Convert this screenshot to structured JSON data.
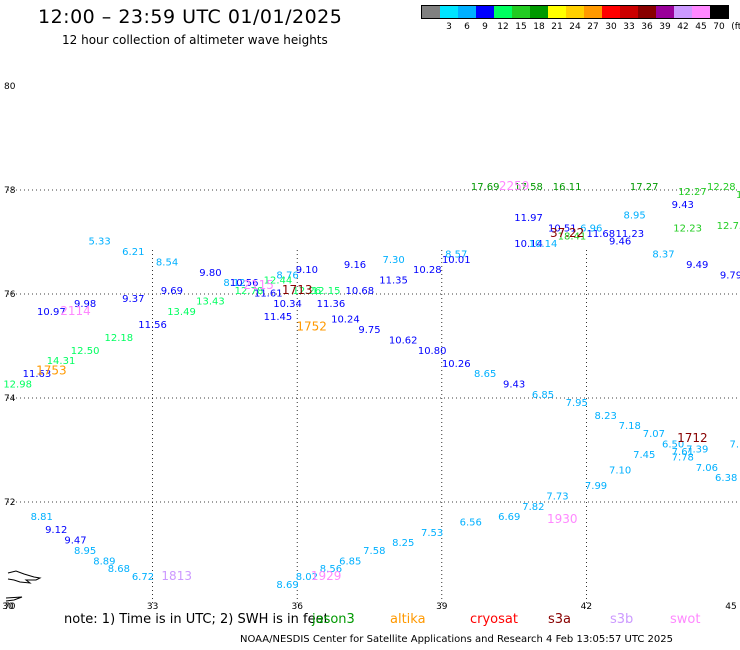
{
  "header": {
    "title": "12:00 – 23:59 UTC 01/01/2025",
    "subtitle": "12 hour collection of altimeter wave heights"
  },
  "legend": {
    "units": "(ft)",
    "swatches": [
      {
        "label": "",
        "color": "#808080"
      },
      {
        "label": "3",
        "color": "#00e5ff"
      },
      {
        "label": "6",
        "color": "#00b0ff"
      },
      {
        "label": "9",
        "color": "#0000ff"
      },
      {
        "label": "12",
        "color": "#00ff60"
      },
      {
        "label": "15",
        "color": "#22cc22"
      },
      {
        "label": "18",
        "color": "#009900"
      },
      {
        "label": "21",
        "color": "#ffff00"
      },
      {
        "label": "24",
        "color": "#ffd000"
      },
      {
        "label": "27",
        "color": "#ff9900"
      },
      {
        "label": "30",
        "color": "#ff0000"
      },
      {
        "label": "33",
        "color": "#cc0000"
      },
      {
        "label": "36",
        "color": "#880000"
      },
      {
        "label": "39",
        "color": "#990099"
      },
      {
        "label": "42",
        "color": "#cc99ff"
      },
      {
        "label": "45",
        "color": "#ff88ff"
      },
      {
        "label": "70",
        "color": "#000000"
      }
    ]
  },
  "axes": {
    "lat_labels": [
      {
        "lat": 80,
        "label": "80"
      },
      {
        "lat": 78,
        "label": "78"
      },
      {
        "lat": 76,
        "label": "76"
      },
      {
        "lat": 74,
        "label": "74"
      },
      {
        "lat": 72,
        "label": "72"
      },
      {
        "lat": 70,
        "label": "70"
      }
    ],
    "lon_labels": [
      {
        "lon": 30,
        "label": "30"
      },
      {
        "lon": 33,
        "label": "33"
      },
      {
        "lon": 36,
        "label": "36"
      },
      {
        "lon": 39,
        "label": "39"
      },
      {
        "lon": 42,
        "label": "42"
      },
      {
        "lon": 45,
        "label": "45"
      }
    ]
  },
  "track_times": [
    {
      "lon": 30.9,
      "lat": 74.45,
      "label": "1753",
      "color": "#ff9900"
    },
    {
      "lon": 31.4,
      "lat": 75.6,
      "label": "2114",
      "color": "#ff88ff"
    },
    {
      "lon": 33.5,
      "lat": 70.5,
      "label": "1813",
      "color": "#cc99ff"
    },
    {
      "lon": 35.2,
      "lat": 76.1,
      "label": "2115",
      "color": "#ff88ff"
    },
    {
      "lon": 36.0,
      "lat": 76.0,
      "label": "1713",
      "color": "#880000"
    },
    {
      "lon": 36.3,
      "lat": 75.3,
      "label": "1752",
      "color": "#ff9900"
    },
    {
      "lon": 36.6,
      "lat": 70.5,
      "label": "1929",
      "color": "#ff88ff"
    },
    {
      "lon": 40.5,
      "lat": 78.0,
      "label": "2259",
      "color": "#ff88ff"
    },
    {
      "lon": 41.6,
      "lat": 77.1,
      "label": "37.22",
      "color": "#880000"
    },
    {
      "lon": 41.5,
      "lat": 71.6,
      "label": "1930",
      "color": "#ff88ff"
    },
    {
      "lon": 44.2,
      "lat": 73.15,
      "label": "1712",
      "color": "#880000"
    }
  ],
  "observations": [
    {
      "lon": 30.9,
      "lat": 75.6,
      "value": "10.97",
      "color": "#0000ff"
    },
    {
      "lon": 31.6,
      "lat": 75.75,
      "value": "9.98",
      "color": "#0000ff"
    },
    {
      "lon": 32.6,
      "lat": 75.85,
      "value": "9.37",
      "color": "#0000ff"
    },
    {
      "lon": 31.9,
      "lat": 76.95,
      "value": "5.33",
      "color": "#00b0ff"
    },
    {
      "lon": 32.6,
      "lat": 76.75,
      "value": "6.21",
      "color": "#00b0ff"
    },
    {
      "lon": 33.3,
      "lat": 76.55,
      "value": "8.54",
      "color": "#00b0ff"
    },
    {
      "lon": 33.4,
      "lat": 76.0,
      "value": "9.69",
      "color": "#0000ff"
    },
    {
      "lon": 34.2,
      "lat": 76.35,
      "value": "9.80",
      "color": "#0000ff"
    },
    {
      "lon": 34.7,
      "lat": 76.15,
      "value": "8.12",
      "color": "#00b0ff"
    },
    {
      "lon": 34.9,
      "lat": 76.15,
      "value": "10.56",
      "color": "#0000ff"
    },
    {
      "lon": 35.8,
      "lat": 76.3,
      "value": "8.76",
      "color": "#00b0ff"
    },
    {
      "lon": 35.4,
      "lat": 75.95,
      "value": "11.61",
      "color": "#0000ff"
    },
    {
      "lon": 35.8,
      "lat": 75.75,
      "value": "10.34",
      "color": "#0000ff"
    },
    {
      "lon": 36.2,
      "lat": 76.4,
      "value": "9.10",
      "color": "#0000ff"
    },
    {
      "lon": 36.7,
      "lat": 75.75,
      "value": "11.36",
      "color": "#0000ff"
    },
    {
      "lon": 37.2,
      "lat": 76.5,
      "value": "9.16",
      "color": "#0000ff"
    },
    {
      "lon": 37.3,
      "lat": 76.0,
      "value": "10.68",
      "color": "#0000ff"
    },
    {
      "lon": 38.0,
      "lat": 76.6,
      "value": "7.30",
      "color": "#00b0ff"
    },
    {
      "lon": 38.0,
      "lat": 76.2,
      "value": "11.35",
      "color": "#0000ff"
    },
    {
      "lon": 38.7,
      "lat": 76.4,
      "value": "10.28",
      "color": "#0000ff"
    },
    {
      "lon": 39.3,
      "lat": 76.7,
      "value": "8.57",
      "color": "#00b0ff"
    },
    {
      "lon": 39.3,
      "lat": 76.6,
      "value": "10.01",
      "color": "#0000ff"
    },
    {
      "lon": 39.9,
      "lat": 78.0,
      "value": "17.69",
      "color": "#009900"
    },
    {
      "lon": 40.8,
      "lat": 78.0,
      "value": "17.58",
      "color": "#009900"
    },
    {
      "lon": 40.8,
      "lat": 77.4,
      "value": "11.97",
      "color": "#0000ff"
    },
    {
      "lon": 40.8,
      "lat": 76.9,
      "value": "10.14",
      "color": "#0000ff"
    },
    {
      "lon": 41.1,
      "lat": 76.9,
      "value": "10.14",
      "color": "#00b0ff"
    },
    {
      "lon": 41.6,
      "lat": 78.0,
      "value": "16.11",
      "color": "#009900"
    },
    {
      "lon": 41.5,
      "lat": 77.2,
      "value": "10.51",
      "color": "#0000ff"
    },
    {
      "lon": 41.7,
      "lat": 77.05,
      "value": "18.41",
      "color": "#22cc22"
    },
    {
      "lon": 42.3,
      "lat": 77.1,
      "value": "11.68",
      "color": "#0000ff"
    },
    {
      "lon": 42.1,
      "lat": 77.2,
      "value": "6.96",
      "color": "#00b0ff"
    },
    {
      "lon": 43.2,
      "lat": 78.0,
      "value": "17.27",
      "color": "#009900"
    },
    {
      "lon": 43.0,
      "lat": 77.45,
      "value": "8.95",
      "color": "#00b0ff"
    },
    {
      "lon": 42.9,
      "lat": 77.1,
      "value": "11.23",
      "color": "#0000ff"
    },
    {
      "lon": 42.7,
      "lat": 76.95,
      "value": "9.46",
      "color": "#0000ff"
    },
    {
      "lon": 43.6,
      "lat": 76.7,
      "value": "8.37",
      "color": "#00b0ff"
    },
    {
      "lon": 44.0,
      "lat": 77.65,
      "value": "9.43",
      "color": "#0000ff"
    },
    {
      "lon": 44.2,
      "lat": 77.9,
      "value": "12.27",
      "color": "#22cc22"
    },
    {
      "lon": 44.8,
      "lat": 78.0,
      "value": "12.28",
      "color": "#22cc22"
    },
    {
      "lon": 45.4,
      "lat": 77.85,
      "value": "12.65",
      "color": "#22cc22"
    },
    {
      "lon": 45.6,
      "lat": 78.15,
      "value": "6.00",
      "color": "#00e5ff"
    },
    {
      "lon": 44.1,
      "lat": 77.2,
      "value": "12.23",
      "color": "#22cc22"
    },
    {
      "lon": 45.0,
      "lat": 77.25,
      "value": "12.75",
      "color": "#22cc22"
    },
    {
      "lon": 44.3,
      "lat": 76.5,
      "value": "9.49",
      "color": "#0000ff"
    },
    {
      "lon": 45.0,
      "lat": 76.3,
      "value": "9.79",
      "color": "#0000ff"
    },
    {
      "lon": 45.6,
      "lat": 76.05,
      "value": "9.69",
      "color": "#0000ff"
    },
    {
      "lon": 46.0,
      "lat": 75.9,
      "value": "9",
      "color": "#0000ff"
    },
    {
      "lon": 46.0,
      "lat": 77.85,
      "value": "2",
      "color": "#ff88ff"
    },
    {
      "lon": 30.6,
      "lat": 74.4,
      "value": "11.63",
      "color": "#0000ff"
    },
    {
      "lon": 30.2,
      "lat": 74.2,
      "value": "12.98",
      "color": "#00ff60"
    },
    {
      "lon": 31.1,
      "lat": 74.65,
      "value": "14.31",
      "color": "#00ff60"
    },
    {
      "lon": 31.6,
      "lat": 74.85,
      "value": "12.50",
      "color": "#00ff60"
    },
    {
      "lon": 32.3,
      "lat": 75.1,
      "value": "12.18",
      "color": "#00ff60"
    },
    {
      "lon": 33.0,
      "lat": 75.35,
      "value": "11.56",
      "color": "#0000ff"
    },
    {
      "lon": 33.6,
      "lat": 75.6,
      "value": "13.49",
      "color": "#00ff60"
    },
    {
      "lon": 34.2,
      "lat": 75.8,
      "value": "13.43",
      "color": "#00ff60"
    },
    {
      "lon": 35.0,
      "lat": 76.0,
      "value": "12.78",
      "color": "#00ff60"
    },
    {
      "lon": 35.6,
      "lat": 76.2,
      "value": "12.44",
      "color": "#00ff60"
    },
    {
      "lon": 35.6,
      "lat": 75.5,
      "value": "11.45",
      "color": "#0000ff"
    },
    {
      "lon": 36.2,
      "lat": 76.0,
      "value": "12.26",
      "color": "#00ff60"
    },
    {
      "lon": 36.6,
      "lat": 76.0,
      "value": "12.15",
      "color": "#00ff60"
    },
    {
      "lon": 37.0,
      "lat": 75.45,
      "value": "10.24",
      "color": "#0000ff"
    },
    {
      "lon": 37.5,
      "lat": 75.25,
      "value": "9.75",
      "color": "#0000ff"
    },
    {
      "lon": 38.2,
      "lat": 75.05,
      "value": "10.62",
      "color": "#0000ff"
    },
    {
      "lon": 38.8,
      "lat": 74.85,
      "value": "10.80",
      "color": "#0000ff"
    },
    {
      "lon": 39.3,
      "lat": 74.6,
      "value": "10.26",
      "color": "#0000ff"
    },
    {
      "lon": 39.9,
      "lat": 74.4,
      "value": "8.65",
      "color": "#00b0ff"
    },
    {
      "lon": 40.5,
      "lat": 74.2,
      "value": "9.43",
      "color": "#0000ff"
    },
    {
      "lon": 41.1,
      "lat": 74.0,
      "value": "6.85",
      "color": "#00b0ff"
    },
    {
      "lon": 41.8,
      "lat": 73.85,
      "value": "7.95",
      "color": "#00b0ff"
    },
    {
      "lon": 42.4,
      "lat": 73.6,
      "value": "8.23",
      "color": "#00b0ff"
    },
    {
      "lon": 42.9,
      "lat": 73.4,
      "value": "7.18",
      "color": "#00b0ff"
    },
    {
      "lon": 43.4,
      "lat": 73.25,
      "value": "7.07",
      "color": "#00b0ff"
    },
    {
      "lon": 43.8,
      "lat": 73.05,
      "value": "6.50",
      "color": "#00b0ff"
    },
    {
      "lon": 44.3,
      "lat": 72.95,
      "value": "7.39",
      "color": "#00b0ff"
    },
    {
      "lon": 44.0,
      "lat": 72.9,
      "value": "7.61",
      "color": "#00b0ff"
    },
    {
      "lon": 44.0,
      "lat": 72.8,
      "value": "7.78",
      "color": "#00b0ff"
    },
    {
      "lon": 44.5,
      "lat": 72.6,
      "value": "7.06",
      "color": "#00b0ff"
    },
    {
      "lon": 45.2,
      "lat": 73.05,
      "value": "7.15",
      "color": "#00b0ff"
    },
    {
      "lon": 45.9,
      "lat": 73.25,
      "value": "6.74",
      "color": "#00b0ff"
    },
    {
      "lon": 44.9,
      "lat": 72.4,
      "value": "6.38",
      "color": "#00b0ff"
    },
    {
      "lon": 45.5,
      "lat": 72.15,
      "value": "7.89",
      "color": "#00b0ff"
    },
    {
      "lon": 45.9,
      "lat": 71.95,
      "value": "7.09",
      "color": "#00b0ff"
    },
    {
      "lon": 46.0,
      "lat": 71.8,
      "value": "8",
      "color": "#00b0ff"
    },
    {
      "lon": 43.2,
      "lat": 72.85,
      "value": "7.45",
      "color": "#00b0ff"
    },
    {
      "lon": 42.7,
      "lat": 72.55,
      "value": "7.10",
      "color": "#00b0ff"
    },
    {
      "lon": 42.2,
      "lat": 72.25,
      "value": "7.99",
      "color": "#00b0ff"
    },
    {
      "lon": 41.4,
      "lat": 72.05,
      "value": "7.73",
      "color": "#00b0ff"
    },
    {
      "lon": 40.9,
      "lat": 71.85,
      "value": "7.82",
      "color": "#00b0ff"
    },
    {
      "lon": 40.4,
      "lat": 71.65,
      "value": "6.69",
      "color": "#00b0ff"
    },
    {
      "lon": 39.6,
      "lat": 71.55,
      "value": "6.56",
      "color": "#00b0ff"
    },
    {
      "lon": 38.8,
      "lat": 71.35,
      "value": "7.53",
      "color": "#00b0ff"
    },
    {
      "lon": 38.2,
      "lat": 71.15,
      "value": "8.25",
      "color": "#00b0ff"
    },
    {
      "lon": 37.6,
      "lat": 71.0,
      "value": "7.58",
      "color": "#00b0ff"
    },
    {
      "lon": 37.1,
      "lat": 70.8,
      "value": "6.85",
      "color": "#00b0ff"
    },
    {
      "lon": 36.7,
      "lat": 70.65,
      "value": "8.56",
      "color": "#00b0ff"
    },
    {
      "lon": 36.2,
      "lat": 70.5,
      "value": "8.02",
      "color": "#00b0ff"
    },
    {
      "lon": 35.8,
      "lat": 70.35,
      "value": "8.69",
      "color": "#00b0ff"
    },
    {
      "lon": 30.7,
      "lat": 71.65,
      "value": "8.81",
      "color": "#00b0ff"
    },
    {
      "lon": 31.0,
      "lat": 71.4,
      "value": "9.12",
      "color": "#0000ff"
    },
    {
      "lon": 31.4,
      "lat": 71.2,
      "value": "9.47",
      "color": "#0000ff"
    },
    {
      "lon": 31.6,
      "lat": 71.0,
      "value": "8.95",
      "color": "#00b0ff"
    },
    {
      "lon": 32.0,
      "lat": 70.8,
      "value": "8.89",
      "color": "#00b0ff"
    },
    {
      "lon": 32.3,
      "lat": 70.65,
      "value": "8.68",
      "color": "#00b0ff"
    },
    {
      "lon": 32.8,
      "lat": 70.5,
      "value": "6.72",
      "color": "#00b0ff"
    }
  ],
  "notes": {
    "prefix": "note: 1) Time is in UTC; 2) SWH is in feet",
    "missions": [
      {
        "name": "jason3",
        "color": "#009900"
      },
      {
        "name": "altika",
        "color": "#ff9900"
      },
      {
        "name": "cryosat",
        "color": "#ff0000"
      },
      {
        "name": "s3a",
        "color": "#880000"
      },
      {
        "name": "s3b",
        "color": "#cc99ff"
      },
      {
        "name": "swot",
        "color": "#ff88ff"
      }
    ]
  },
  "footer": "NOAA/NESDIS Center for Satellite Applications and Research     4 Feb 13:05:57 UTC 2025"
}
